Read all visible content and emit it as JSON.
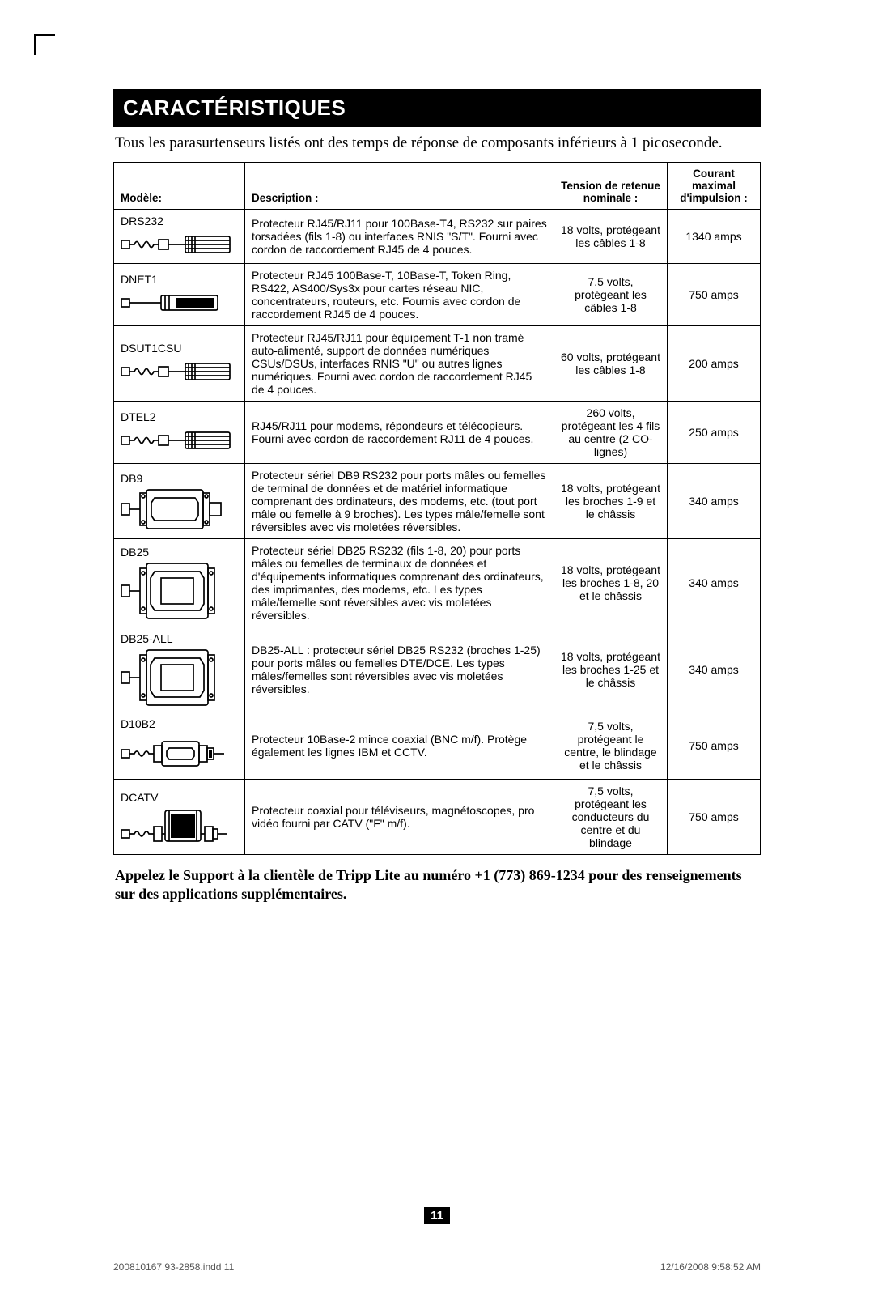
{
  "title": "CARACTÉRISTIQUES",
  "intro": "Tous les parasurtenseurs listés ont des temps de réponse de composants inférieurs à 1 picoseconde.",
  "headers": {
    "model": "Modèle:",
    "desc": "Description :",
    "voltage": "Tension de retenue nominale :",
    "current": "Courant maximal d'impulsion :"
  },
  "rows": [
    {
      "model": "DRS232",
      "desc": "Protecteur RJ45/RJ11 pour 100Base-T4, RS232 sur paires torsadées (fils 1-8) ou interfaces RNIS \"S/T\". Fourni avec cordon de raccordement RJ45 de 4 pouces.",
      "voltage": "18 volts, protégeant les câbles 1-8",
      "current": "1340 amps",
      "illus": "cable"
    },
    {
      "model": "DNET1",
      "desc": "Protecteur RJ45 100Base-T, 10Base-T, Token Ring, RS422, AS400/Sys3x pour cartes réseau NIC, concentrateurs, routeurs, etc. Fournis avec cordon de raccordement RJ45 de 4 pouces.",
      "voltage": "7,5 volts, protégeant les câbles 1-8",
      "current": "750 amps",
      "illus": "box"
    },
    {
      "model": "DSUT1CSU",
      "desc": "Protecteur RJ45/RJ11 pour équipement T-1 non tramé auto-alimenté, support de données numériques CSUs/DSUs, interfaces RNIS \"U\" ou autres lignes numériques. Fourni avec cordon de raccordement RJ45 de 4 pouces.",
      "voltage": "60 volts, protégeant les câbles 1-8",
      "current": "200 amps",
      "illus": "cable"
    },
    {
      "model": "DTEL2",
      "desc": "RJ45/RJ11 pour modems, répondeurs et télécopieurs. Fourni avec cordon de raccordement RJ11 de 4 pouces.",
      "voltage": "260 volts, protégeant les 4 fils au centre (2 CO-lignes)",
      "current": "250 amps",
      "illus": "cable"
    },
    {
      "model": "DB9",
      "desc": "Protecteur sériel DB9 RS232 pour ports mâles ou femelles de terminal de données et de matériel informatique comprenant des ordinateurs, des modems, etc. (tout port mâle ou femelle à 9 broches). Les types mâle/femelle sont réversibles avec vis moletées réversibles.",
      "voltage": "18 volts, protégeant les broches 1-9 et le châssis",
      "current": "340 amps",
      "illus": "db9"
    },
    {
      "model": "DB25",
      "desc": "Protecteur sériel DB25 RS232 (fils 1-8, 20) pour ports mâles ou femelles de terminaux de données et d'équipements informatiques comprenant des ordinateurs, des imprimantes, des modems, etc. Les types mâle/femelle sont réversibles avec vis moletées réversibles.",
      "voltage": "18 volts, protégeant les broches 1-8, 20 et le châssis",
      "current": "340 amps",
      "illus": "db25"
    },
    {
      "model": "DB25-ALL",
      "desc": "DB25-ALL : protecteur sériel DB25 RS232 (broches 1-25) pour ports mâles ou femelles DTE/DCE. Les types mâles/femelles sont réversibles avec vis moletées réversibles.",
      "voltage": "18 volts, protégeant les broches 1-25 et le châssis",
      "current": "340 amps",
      "illus": "db25"
    },
    {
      "model": "D10B2",
      "desc": "Protecteur 10Base-2 mince coaxial (BNC m/f). Protège également les lignes IBM et CCTV.",
      "voltage": "7,5 volts, protégeant le centre, le blindage et le châssis",
      "current": "750 amps",
      "illus": "bnc"
    },
    {
      "model": "DCATV",
      "desc": "Protecteur coaxial pour téléviseurs, magnétoscopes, pro vidéo fourni par CATV (\"F\" m/f).",
      "voltage": "7,5 volts, protégeant les conducteurs du centre et du blindage",
      "current": "750 amps",
      "illus": "catv"
    }
  ],
  "support": "Appelez le Support à la clientèle de Tripp Lite au numéro +1 (773) 869-1234 pour des renseignements sur des applications supplémentaires.",
  "page_number": "11",
  "footer_left": "200810167 93-2858.indd   11",
  "footer_right": "12/16/2008   9:58:52 AM",
  "colors": {
    "bg": "#ffffff",
    "fg": "#000000",
    "muted": "#555555"
  },
  "fonts": {
    "body": "Arial",
    "serif": "Times New Roman",
    "title_pt": 26,
    "body_pt": 14
  }
}
